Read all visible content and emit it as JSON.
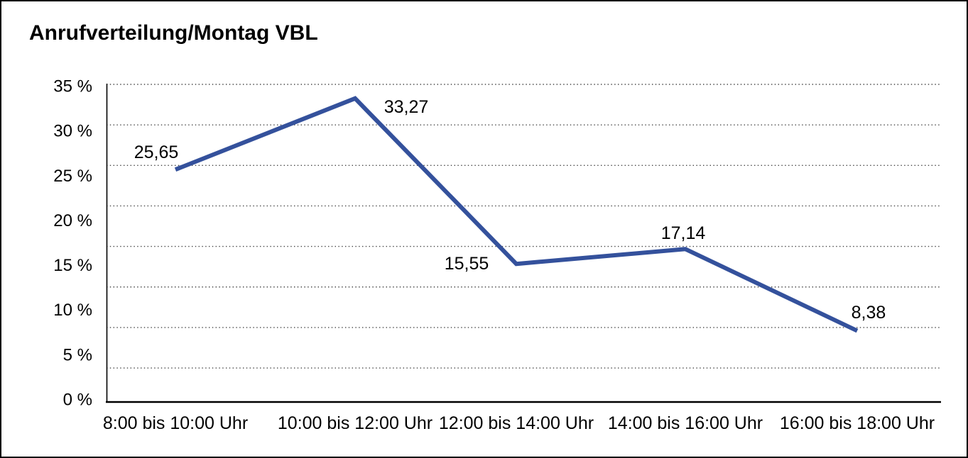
{
  "title": "Anrufverteilung/Montag VBL",
  "chart_data": {
    "type": "line",
    "title": "Anrufverteilung/Montag VBL",
    "categories": [
      "8:00 bis 10:00 Uhr",
      "10:00 bis 12:00 Uhr",
      "12:00 bis 14:00 Uhr",
      "14:00 bis 16:00 Uhr",
      "16:00 bis 18:00 Uhr"
    ],
    "series": [
      {
        "name": "Anrufverteilung Montag VBL",
        "values": [
          25.65,
          33.27,
          15.55,
          17.14,
          8.38
        ]
      }
    ],
    "value_labels": [
      "25,65",
      "33,27",
      "15,55",
      "17,14",
      "8,38"
    ],
    "ytick_labels": [
      "35 %",
      "30 %",
      "25 %",
      "20 %",
      "15 %",
      "10 %",
      "5 %",
      "0 %"
    ],
    "ylim": [
      0,
      35
    ],
    "ytick_step": 5,
    "xlabel": "",
    "ylabel": "",
    "grid": "horizontal-dotted",
    "legend": "none",
    "colors": {
      "line": "#34519C",
      "grid": "#444444",
      "axis": "#000000",
      "text": "#000000",
      "background": "#ffffff"
    }
  }
}
